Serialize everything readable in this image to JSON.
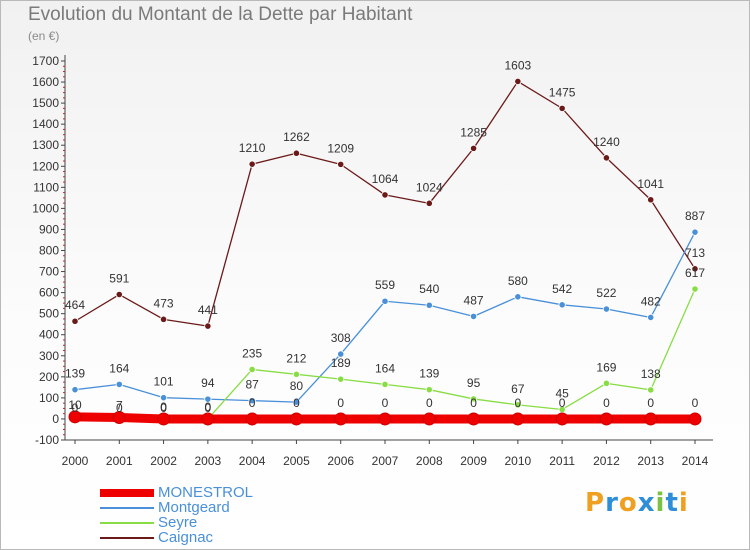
{
  "header": {
    "title": "Evolution du Montant de la Dette par Habitant",
    "subtitle": "(en €)"
  },
  "brand": {
    "letters": [
      "P",
      "r",
      "o",
      "x",
      "i",
      "t",
      "i"
    ]
  },
  "chart_data": {
    "type": "line",
    "x": [
      "2000",
      "2001",
      "2002",
      "2003",
      "2004",
      "2005",
      "2006",
      "2007",
      "2008",
      "2009",
      "2010",
      "2011",
      "2012",
      "2013",
      "2014"
    ],
    "ylim": [
      -100,
      1700
    ],
    "yticks": [
      -100,
      0,
      100,
      200,
      300,
      400,
      500,
      600,
      700,
      800,
      900,
      1000,
      1100,
      1200,
      1300,
      1400,
      1500,
      1600,
      1700
    ],
    "grid": false,
    "legend": "bottom-left",
    "series": [
      {
        "name": "MONESTROL",
        "color": "#ee0000",
        "values": [
          10,
          7,
          0,
          0,
          0,
          0,
          0,
          0,
          0,
          0,
          0,
          0,
          0,
          0,
          0
        ],
        "labels": [
          "10",
          "7",
          "0",
          "0",
          "",
          "",
          "",
          "",
          "",
          "",
          "",
          "",
          "",
          "",
          ""
        ]
      },
      {
        "name": "Montgeard",
        "color": "#4a90d9",
        "values": [
          139,
          164,
          101,
          94,
          87,
          80,
          308,
          559,
          540,
          487,
          580,
          542,
          522,
          482,
          887
        ],
        "labels": [
          "139",
          "164",
          "101",
          "94",
          "87",
          "80",
          "308",
          "559",
          "540",
          "487",
          "580",
          "542",
          "522",
          "482",
          "887"
        ]
      },
      {
        "name": "Seyre",
        "color": "#88dd44",
        "values": [
          0,
          0,
          0,
          0,
          235,
          212,
          189,
          164,
          139,
          95,
          67,
          45,
          169,
          138,
          617
        ],
        "labels": [
          "0",
          "0",
          "0",
          "0",
          "235",
          "212",
          "189",
          "164",
          "139",
          "95",
          "67",
          "45",
          "169",
          "138",
          "617"
        ]
      },
      {
        "name": "Caignac",
        "color": "#6b1a1a",
        "values": [
          464,
          591,
          473,
          441,
          1210,
          1262,
          1209,
          1064,
          1024,
          1285,
          1603,
          1475,
          1240,
          1041,
          713
        ],
        "labels": [
          "464",
          "591",
          "473",
          "441",
          "1210",
          "1262",
          "1209",
          "1064",
          "1024",
          "1285",
          "1603",
          "1475",
          "1240",
          "1041",
          "713"
        ]
      }
    ],
    "zero_labels": [
      "",
      "",
      "",
      "",
      "0",
      "0",
      "0",
      "0",
      "0",
      "0",
      "0",
      "0",
      "0",
      "0",
      "0"
    ]
  }
}
